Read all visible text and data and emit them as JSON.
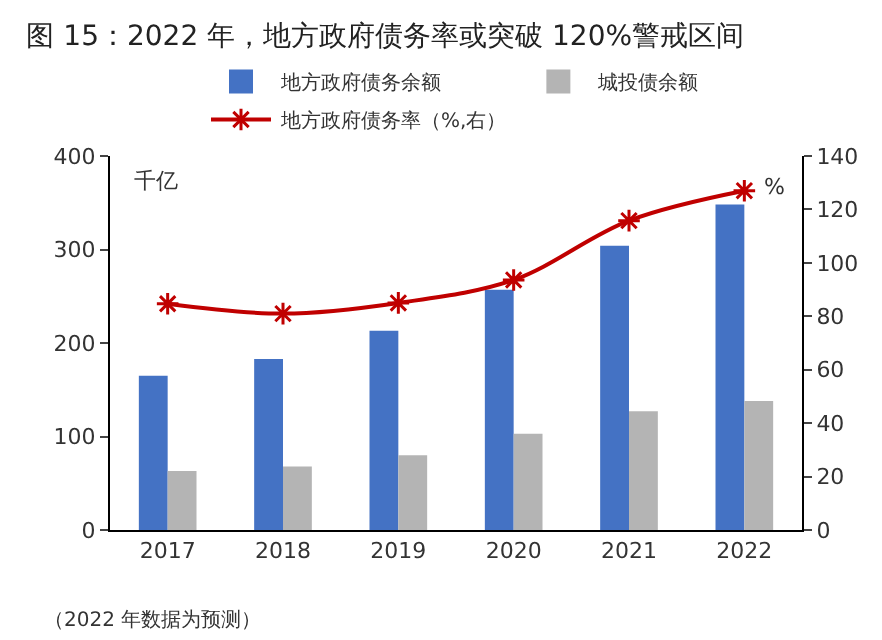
{
  "chart_data": {
    "type": "bar",
    "title": "图 15：2022 年，地方政府债务率或突破 120%警戒区间",
    "ylabel": "千亿",
    "y2label": "%",
    "categories": [
      "2017",
      "2018",
      "2019",
      "2020",
      "2021",
      "2022"
    ],
    "series": [
      {
        "name": "地方政府债务余额",
        "color": "#4472c4",
        "values": [
          165,
          183,
          213,
          257,
          304,
          348
        ]
      },
      {
        "name": "城投债余额",
        "color": "#b4b4b4",
        "values": [
          63,
          68,
          80,
          103,
          127,
          138
        ]
      },
      {
        "name": "地方政府债务率（%,右）",
        "type": "line",
        "axis": "y2",
        "color": "#c00000",
        "marker": "cross",
        "values": [
          84.7,
          81,
          85,
          93.6,
          115.8,
          127
        ]
      }
    ],
    "ylim": [
      0,
      400
    ],
    "yticks": [
      0,
      100,
      200,
      300,
      400
    ],
    "y2lim": [
      0,
      140
    ],
    "y2ticks": [
      0,
      20,
      40,
      60,
      80,
      100,
      120,
      140
    ],
    "grid": false,
    "legend": "top",
    "annotations": [
      "（2022 年数据为预测）"
    ]
  }
}
